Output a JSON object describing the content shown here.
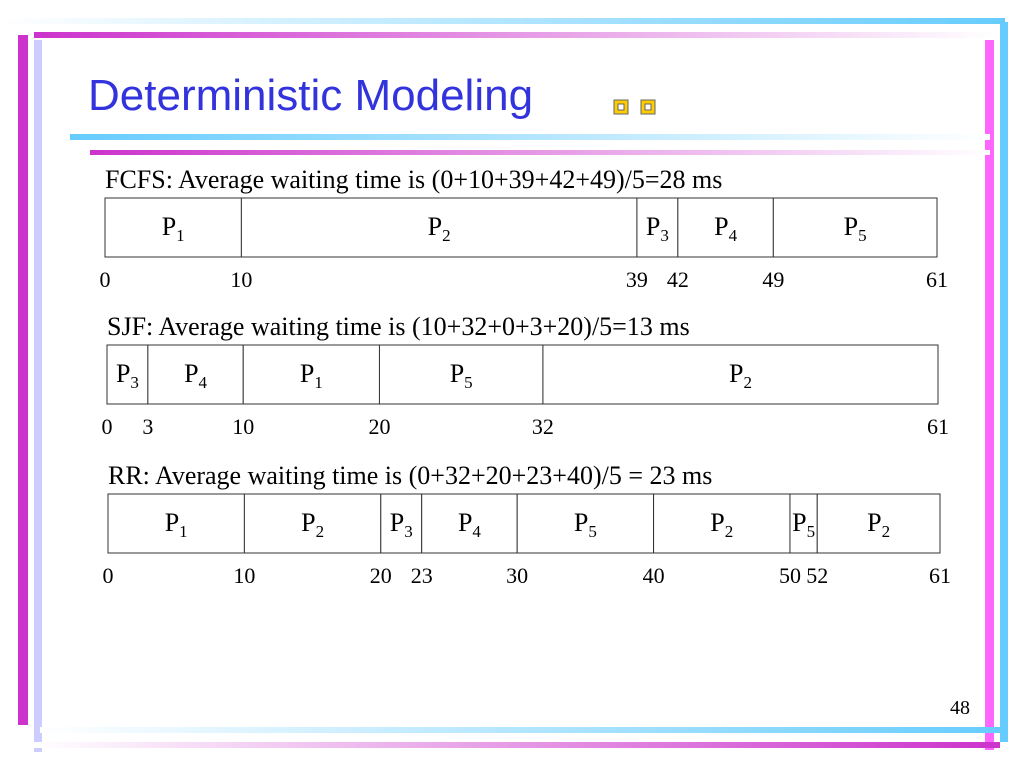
{
  "title": "Deterministic Modeling",
  "page_number": "48",
  "sections": [
    {
      "heading": "FCFS: Average waiting time is (0+10+39+42+49)/5=28 ms",
      "blocks": [
        {
          "name": "P",
          "sub": "1"
        },
        {
          "name": "P",
          "sub": "2"
        },
        {
          "name": "P",
          "sub": "3"
        },
        {
          "name": "P",
          "sub": "4"
        },
        {
          "name": "P",
          "sub": "5"
        }
      ],
      "times": [
        0,
        10,
        39,
        42,
        49,
        61
      ]
    },
    {
      "heading": "SJF: Average waiting time is (10+32+0+3+20)/5=13 ms",
      "blocks": [
        {
          "name": "P",
          "sub": "3"
        },
        {
          "name": "P",
          "sub": "4"
        },
        {
          "name": "P",
          "sub": "1"
        },
        {
          "name": "P",
          "sub": "5"
        },
        {
          "name": "P",
          "sub": "2"
        }
      ],
      "times": [
        0,
        3,
        10,
        20,
        32,
        61
      ]
    },
    {
      "heading": "RR: Average waiting time is (0+32+20+23+40)/5 = 23 ms",
      "blocks": [
        {
          "name": "P",
          "sub": "1"
        },
        {
          "name": "P",
          "sub": "2"
        },
        {
          "name": "P",
          "sub": "3"
        },
        {
          "name": "P",
          "sub": "4"
        },
        {
          "name": "P",
          "sub": "5"
        },
        {
          "name": "P",
          "sub": "2"
        },
        {
          "name": "P",
          "sub": "5"
        },
        {
          "name": "P",
          "sub": "2"
        }
      ],
      "times": [
        0,
        10,
        20,
        23,
        30,
        40,
        50,
        52,
        61
      ]
    }
  ]
}
